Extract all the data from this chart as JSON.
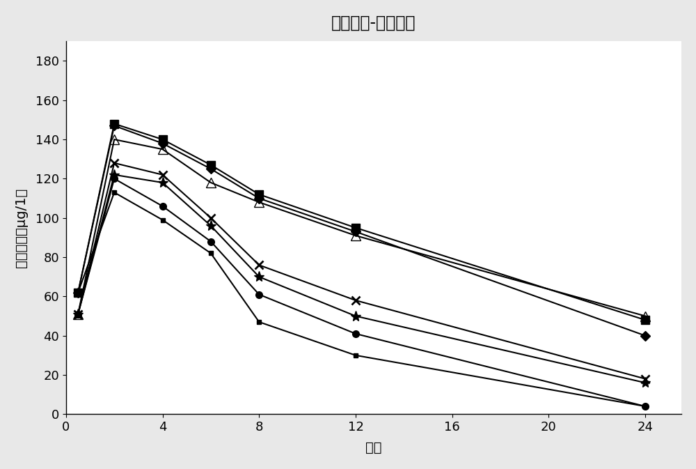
{
  "title": "血药浓度-时间曲线",
  "xlabel": "时间",
  "ylabel": "血药浓度（μg/1）",
  "xlim": [
    0,
    25.5
  ],
  "ylim": [
    0,
    190
  ],
  "xticks": [
    0,
    4,
    8,
    12,
    16,
    20,
    24
  ],
  "yticks": [
    0,
    20,
    40,
    60,
    80,
    100,
    120,
    140,
    160,
    180
  ],
  "series": [
    {
      "name": "series1_square_filled",
      "x": [
        0.5,
        2,
        4,
        6,
        8,
        12,
        24
      ],
      "y": [
        62,
        148,
        140,
        127,
        112,
        95,
        48
      ],
      "marker": "s",
      "linestyle": "-",
      "fillstyle": "full",
      "markersize": 8
    },
    {
      "name": "series2_diamond_filled",
      "x": [
        0.5,
        2,
        4,
        6,
        8,
        12,
        24
      ],
      "y": [
        62,
        147,
        138,
        125,
        110,
        93,
        40
      ],
      "marker": "D",
      "linestyle": "-",
      "fillstyle": "full",
      "markersize": 7
    },
    {
      "name": "series3_triangle_open",
      "x": [
        0.5,
        2,
        4,
        6,
        8,
        12,
        24
      ],
      "y": [
        51,
        140,
        135,
        118,
        108,
        91,
        50
      ],
      "marker": "^",
      "linestyle": "-",
      "fillstyle": "none",
      "markersize": 10
    },
    {
      "name": "series4_cross_x",
      "x": [
        0.5,
        2,
        4,
        6,
        8,
        12,
        24
      ],
      "y": [
        51,
        128,
        122,
        100,
        76,
        58,
        18
      ],
      "marker": "x",
      "linestyle": "-",
      "fillstyle": "full",
      "markersize": 9
    },
    {
      "name": "series5_star",
      "x": [
        0.5,
        2,
        4,
        6,
        8,
        12,
        24
      ],
      "y": [
        51,
        122,
        118,
        96,
        70,
        50,
        16
      ],
      "marker": "*",
      "linestyle": "-",
      "fillstyle": "full",
      "markersize": 11
    },
    {
      "name": "series6_circle_filled",
      "x": [
        0.5,
        2,
        4,
        6,
        8,
        12,
        24
      ],
      "y": [
        51,
        120,
        106,
        88,
        61,
        41,
        4
      ],
      "marker": "o",
      "linestyle": "-",
      "fillstyle": "full",
      "markersize": 7
    },
    {
      "name": "series7_square_small_filled",
      "x": [
        0.5,
        2,
        4,
        6,
        8,
        12,
        24
      ],
      "y": [
        62,
        113,
        99,
        82,
        47,
        30,
        4
      ],
      "marker": "s",
      "linestyle": "-",
      "fillstyle": "full",
      "markersize": 5
    }
  ],
  "fig_bg_color": "#e8e8e8",
  "plot_bg_color": "#ffffff",
  "title_fontsize": 17,
  "label_fontsize": 14,
  "tick_fontsize": 13,
  "linewidth": 1.5
}
